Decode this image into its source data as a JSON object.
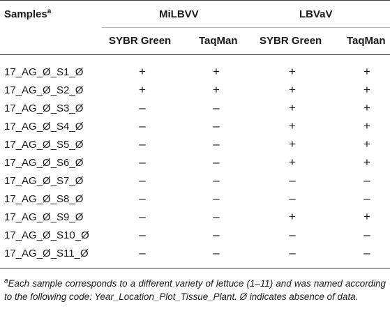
{
  "table": {
    "header": {
      "samples_label": "Samples",
      "samples_sup": "a",
      "group1": "MiLBVV",
      "group2": "LBVaV",
      "sub1": "SYBR Green",
      "sub2": "TaqMan",
      "sub3": "SYBR Green",
      "sub4": "TaqMan"
    },
    "rows": [
      {
        "sample": "17_AG_Ø_S1_Ø",
        "v": [
          "+",
          "+",
          "+",
          "+"
        ]
      },
      {
        "sample": "17_AG_Ø_S2_Ø",
        "v": [
          "+",
          "+",
          "+",
          "+"
        ]
      },
      {
        "sample": "17_AG_Ø_S3_Ø",
        "v": [
          "–",
          "–",
          "+",
          "+"
        ]
      },
      {
        "sample": "17_AG_Ø_S4_Ø",
        "v": [
          "–",
          "–",
          "+",
          "+"
        ]
      },
      {
        "sample": "17_AG_Ø_S5_Ø",
        "v": [
          "–",
          "–",
          "+",
          "+"
        ]
      },
      {
        "sample": "17_AG_Ø_S6_Ø",
        "v": [
          "–",
          "–",
          "+",
          "+"
        ]
      },
      {
        "sample": "17_AG_Ø_S7_Ø",
        "v": [
          "–",
          "–",
          "–",
          "–"
        ]
      },
      {
        "sample": "17_AG_Ø_S8_Ø",
        "v": [
          "–",
          "–",
          "–",
          "–"
        ]
      },
      {
        "sample": "17_AG_Ø_S9_Ø",
        "v": [
          "–",
          "–",
          "+",
          "+"
        ]
      },
      {
        "sample": "17_AG_Ø_S10_Ø",
        "v": [
          "–",
          "–",
          "–",
          "–"
        ]
      },
      {
        "sample": "17_AG_Ø_S11_Ø",
        "v": [
          "–",
          "–",
          "–",
          "–"
        ]
      }
    ],
    "footnote": {
      "sup": "a",
      "text": "Each sample corresponds to a different variety of lettuce (1–11) and was named according to the following code: Year_Location_Plot_Tissue_Plant. Ø indicates absence of data."
    }
  }
}
